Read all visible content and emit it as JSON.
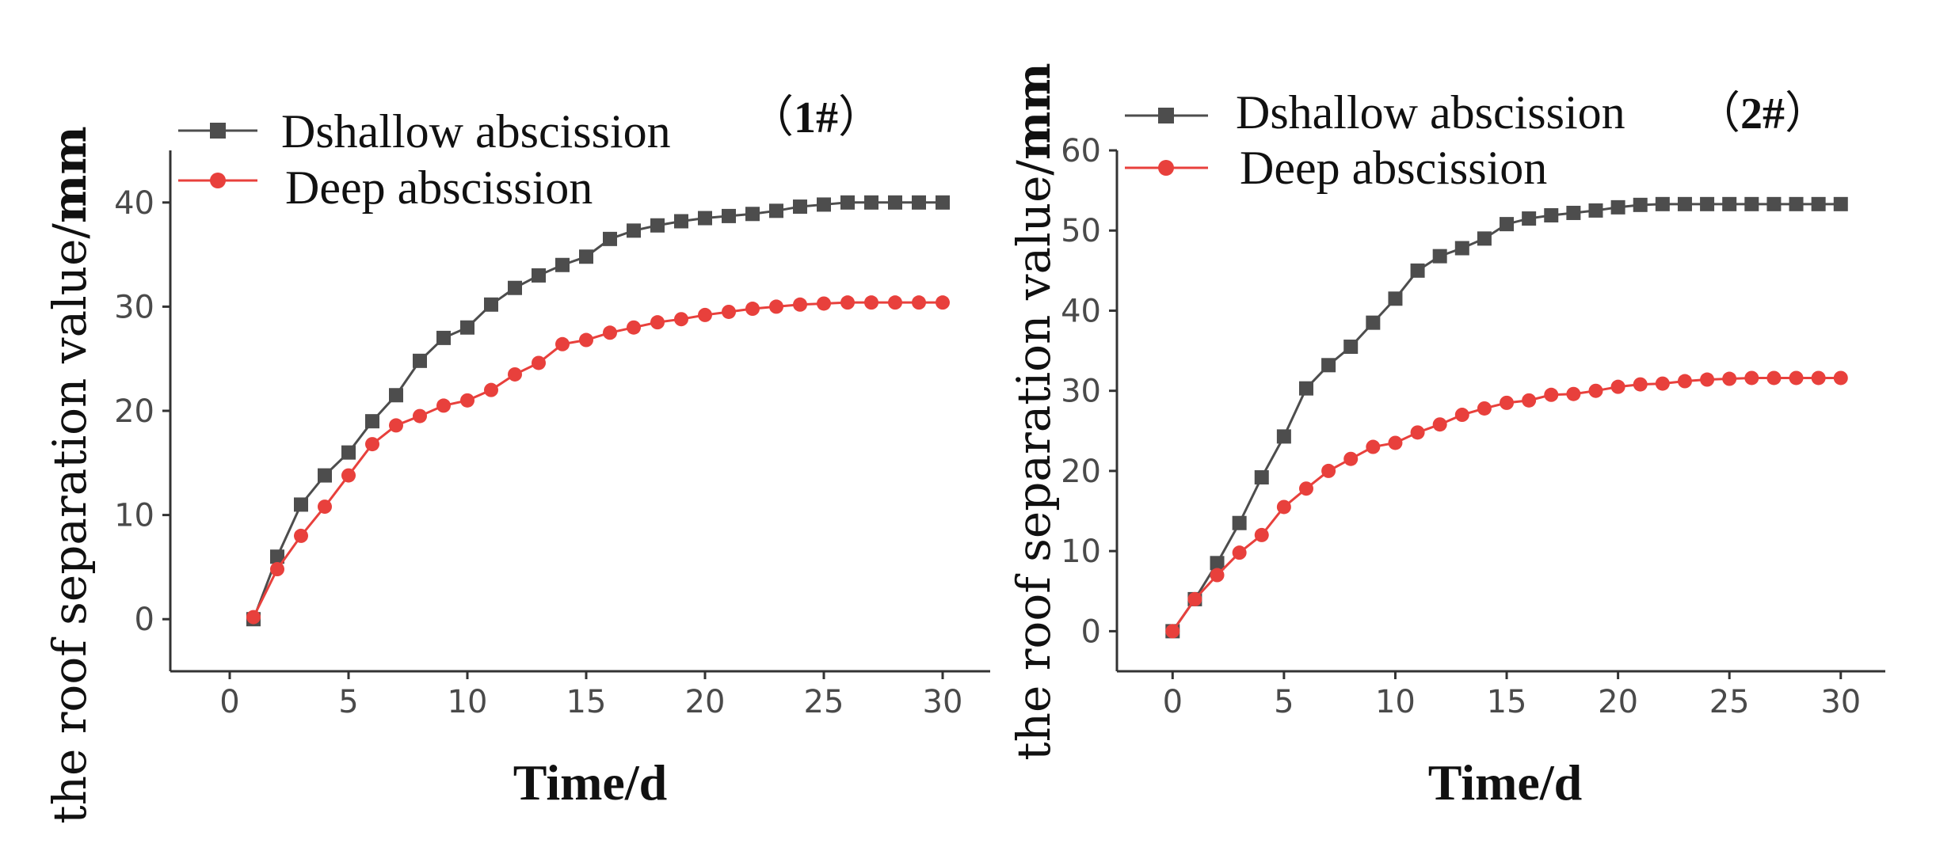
{
  "chart_data": [
    {
      "type": "line",
      "panel_label": "1#",
      "xlabel": "Time/d",
      "ylabel": "the roof separation value/",
      "ylabel_unit": "mm",
      "xlim": [
        -2.5,
        32
      ],
      "ylim": [
        -5,
        45
      ],
      "xticks": [
        0,
        5,
        10,
        15,
        20,
        25,
        30
      ],
      "yticks": [
        0,
        10,
        20,
        30,
        40
      ],
      "x": [
        1,
        2,
        3,
        4,
        5,
        6,
        7,
        8,
        9,
        10,
        11,
        12,
        13,
        14,
        15,
        16,
        17,
        18,
        19,
        20,
        21,
        22,
        23,
        24,
        25,
        26,
        27,
        28,
        29,
        30
      ],
      "series": [
        {
          "name": "Dshallow abscission",
          "color": "#4d4d4d",
          "marker": "square",
          "values": [
            0,
            6,
            11,
            13.8,
            16,
            19,
            21.5,
            24.8,
            27,
            28,
            30.2,
            31.8,
            33,
            34,
            34.8,
            36.5,
            37.3,
            37.8,
            38.2,
            38.5,
            38.7,
            38.9,
            39.2,
            39.6,
            39.8,
            40,
            40,
            40,
            40,
            40
          ]
        },
        {
          "name": "Deep abscission",
          "color": "#e8403c",
          "marker": "circle",
          "values": [
            0.2,
            4.8,
            8,
            10.8,
            13.8,
            16.8,
            18.6,
            19.5,
            20.5,
            21,
            22,
            23.5,
            24.6,
            26.4,
            26.8,
            27.5,
            28,
            28.5,
            28.8,
            29.2,
            29.5,
            29.8,
            30,
            30.2,
            30.3,
            30.4,
            30.4,
            30.4,
            30.4,
            30.4
          ]
        }
      ]
    },
    {
      "type": "line",
      "panel_label": "2#",
      "xlabel": "Time/d",
      "ylabel": "the roof separation value/",
      "ylabel_unit": "mm",
      "xlim": [
        -2.5,
        32
      ],
      "ylim": [
        -5,
        60
      ],
      "xticks": [
        0,
        5,
        10,
        15,
        20,
        25,
        30
      ],
      "yticks": [
        0,
        10,
        20,
        30,
        40,
        50,
        60
      ],
      "x": [
        0,
        1,
        2,
        3,
        4,
        5,
        6,
        7,
        8,
        9,
        10,
        11,
        12,
        13,
        14,
        15,
        16,
        17,
        18,
        19,
        20,
        21,
        22,
        23,
        24,
        25,
        26,
        27,
        28,
        29,
        30
      ],
      "series": [
        {
          "name": "Dshallow abscission",
          "color": "#4d4d4d",
          "marker": "square",
          "values": [
            0,
            4,
            8.5,
            13.5,
            19.2,
            24.3,
            30.3,
            33.2,
            35.5,
            38.5,
            41.5,
            45,
            46.8,
            47.8,
            49,
            50.8,
            51.5,
            51.9,
            52.2,
            52.5,
            52.9,
            53.2,
            53.3,
            53.3,
            53.3,
            53.3,
            53.3,
            53.3,
            53.3,
            53.3,
            53.3
          ]
        },
        {
          "name": "Deep abscission",
          "color": "#e8403c",
          "marker": "circle",
          "values": [
            0,
            4,
            7,
            9.8,
            12,
            15.5,
            17.8,
            20,
            21.5,
            23,
            23.5,
            24.8,
            25.8,
            27,
            27.8,
            28.5,
            28.8,
            29.5,
            29.6,
            30,
            30.5,
            30.8,
            30.9,
            31.2,
            31.4,
            31.5,
            31.6,
            31.6,
            31.6,
            31.6,
            31.6
          ]
        }
      ]
    }
  ]
}
